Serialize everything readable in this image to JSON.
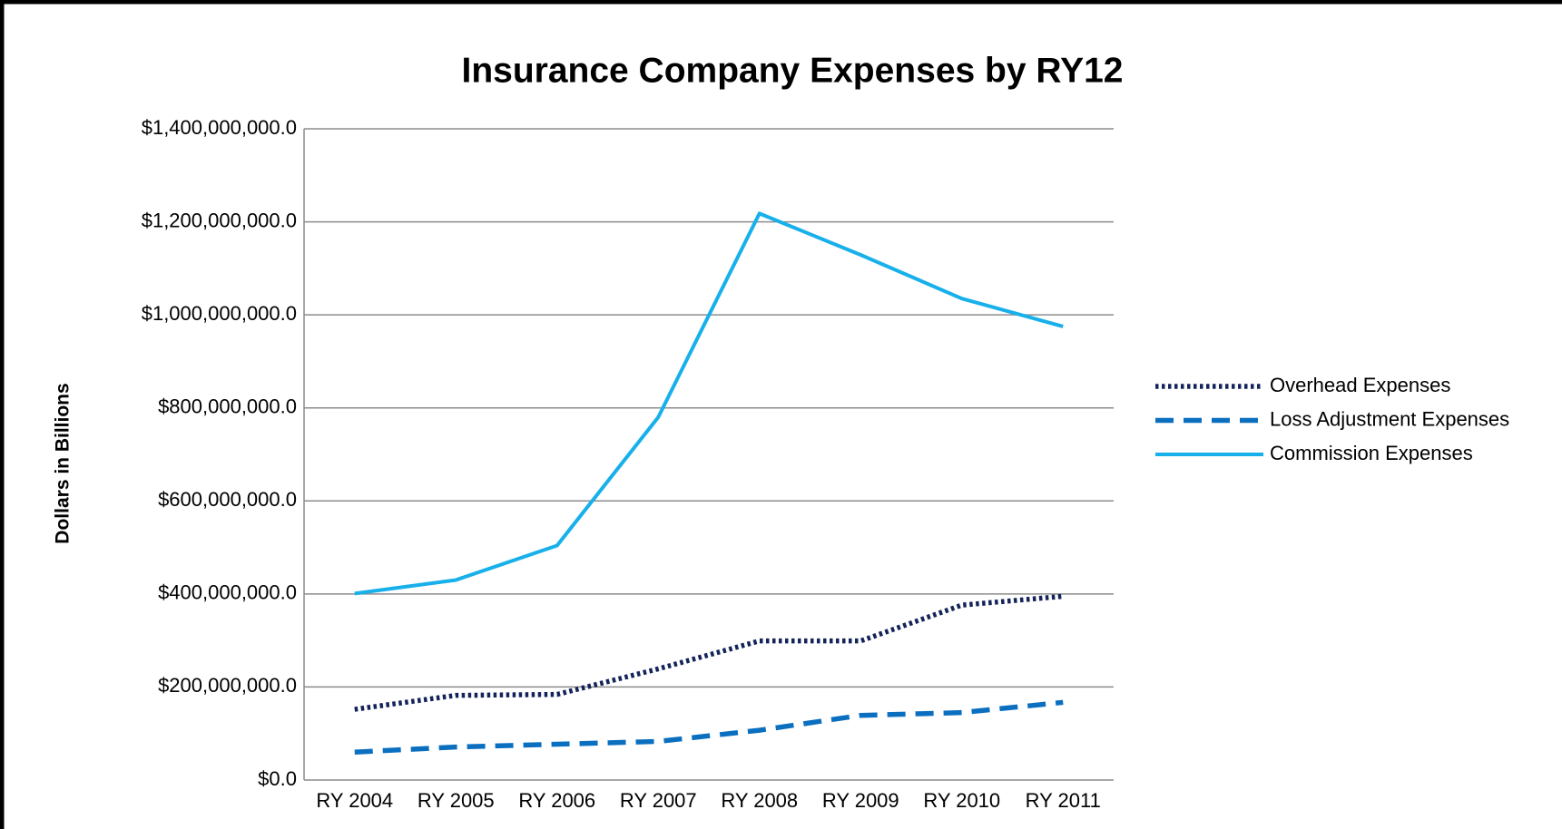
{
  "chart_data": {
    "type": "line",
    "title": "Insurance Company Expenses by RY12",
    "y_label": "Dollars in Billions",
    "categories": [
      "RY 2004",
      "RY 2005",
      "RY 2006",
      "RY 2007",
      "RY 2008",
      "RY 2009",
      "RY 2010",
      "RY 2011"
    ],
    "series": [
      {
        "name": "Overhead Expenses",
        "color": "#14245a",
        "dash": "dotted",
        "values": [
          152000000,
          182000000,
          184000000,
          239000000,
          299000000,
          299000000,
          376000000,
          395000000
        ]
      },
      {
        "name": "Loss Adjustment Expenses",
        "color": "#0b6fc0",
        "dash": "dashed",
        "values": [
          60000000,
          71000000,
          77000000,
          83000000,
          107000000,
          139000000,
          145000000,
          167000000
        ]
      },
      {
        "name": "Commission Expenses",
        "color": "#18b0ea",
        "dash": "solid",
        "values": [
          401000000,
          430000000,
          504000000,
          780000000,
          1218000000,
          1129000000,
          1035000000,
          975000000
        ]
      }
    ],
    "ylim": [
      0,
      1400000000
    ],
    "yticks": [
      {
        "value": 0,
        "label": "$0.0"
      },
      {
        "value": 200000000,
        "label": "$200,000,000.0"
      },
      {
        "value": 400000000,
        "label": "$400,000,000.0"
      },
      {
        "value": 600000000,
        "label": "$600,000,000.0"
      },
      {
        "value": 800000000,
        "label": "$800,000,000.0"
      },
      {
        "value": 1000000000,
        "label": "$1,000,000,000.0"
      },
      {
        "value": 1200000000,
        "label": "$1,200,000,000.0"
      },
      {
        "value": 1400000000,
        "label": "$1,400,000,000.0"
      }
    ],
    "grid": true,
    "legend": "right"
  }
}
